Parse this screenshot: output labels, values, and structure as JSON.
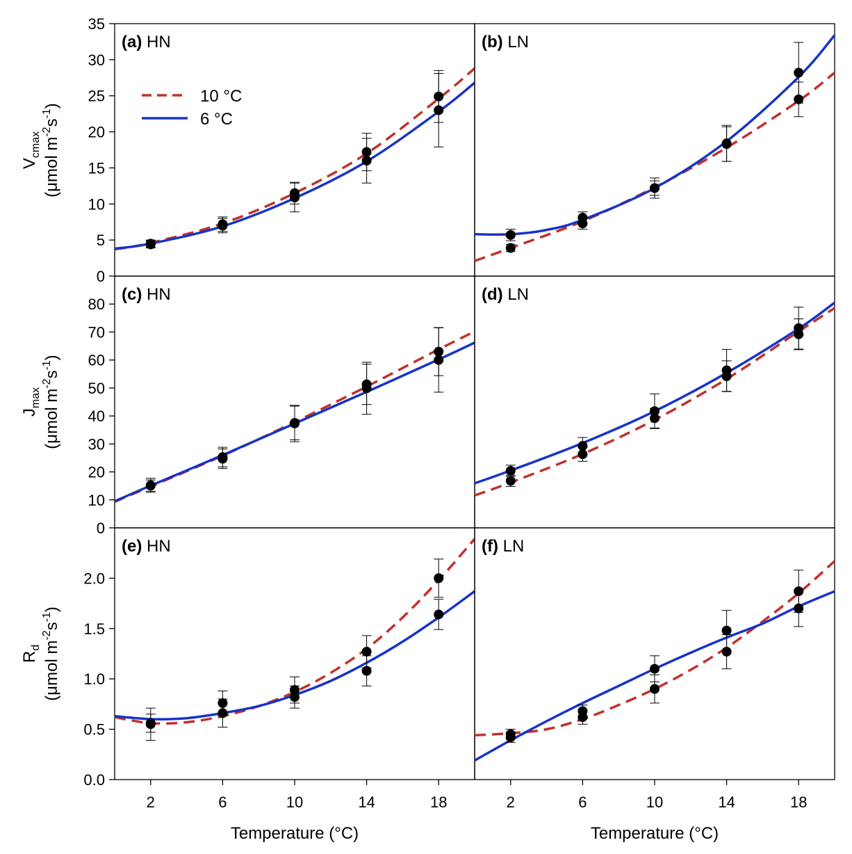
{
  "figure": {
    "xlabel": "Temperature (°C)"
  },
  "legend": [
    {
      "label": "10 °C",
      "color": "#c0312b",
      "dashed": true
    },
    {
      "label": "6 °C",
      "color": "#1733c9",
      "dashed": false
    }
  ],
  "row_labels": [
    {
      "main": "V",
      "sub": "cmax",
      "unit_pre": "(μmol m",
      "sup1": "-2",
      "unit_mid": "s",
      "sup2": "-1",
      "unit_post": ")"
    },
    {
      "main": "J",
      "sub": "max",
      "unit_pre": "(μmol m",
      "sup1": "-2",
      "unit_mid": "s",
      "sup2": "-1",
      "unit_post": ")"
    },
    {
      "main": "R",
      "sub": "d",
      "unit_pre": "(μmol m",
      "sup1": "-2",
      "unit_mid": "s",
      "sup2": "-1",
      "unit_post": ")"
    }
  ],
  "chart_data": [
    {
      "type": "scatter",
      "panel": "a",
      "tag": "(a)",
      "nitrogen": "HN",
      "xlim": [
        0,
        20
      ],
      "ylim": [
        0,
        35
      ],
      "yticks": [
        "0",
        "5",
        "10",
        "15",
        "20",
        "25",
        "30",
        "35"
      ],
      "ytick_values": [
        0,
        5,
        10,
        15,
        20,
        25,
        30,
        35
      ],
      "xticks": [
        2,
        6,
        10,
        14,
        18
      ],
      "series": [
        {
          "name": "10 °C",
          "color": "#c0312b",
          "dashed": true,
          "points": [
            [
              2,
              4.5,
              0.5
            ],
            [
              6,
              7.2,
              1.0
            ],
            [
              10,
              11.5,
              1.5
            ],
            [
              14,
              17.2,
              2.6
            ],
            [
              18,
              24.9,
              3.6
            ]
          ],
          "curve": [
            [
              0,
              3.7
            ],
            [
              2,
              4.6
            ],
            [
              6,
              7.3
            ],
            [
              10,
              11.5
            ],
            [
              14,
              17.0
            ],
            [
              18,
              24.6
            ],
            [
              20,
              28.8
            ]
          ]
        },
        {
          "name": "6 °C",
          "color": "#1733c9",
          "dashed": false,
          "points": [
            [
              2,
              4.4,
              0.5
            ],
            [
              6,
              7.0,
              1.0
            ],
            [
              10,
              10.9,
              2.0
            ],
            [
              14,
              16.0,
              3.1
            ],
            [
              18,
              23.0,
              5.1
            ]
          ],
          "curve": [
            [
              0,
              3.8
            ],
            [
              2,
              4.5
            ],
            [
              6,
              6.9
            ],
            [
              10,
              10.8
            ],
            [
              14,
              15.9
            ],
            [
              18,
              22.8
            ],
            [
              20,
              26.8
            ]
          ]
        }
      ]
    },
    {
      "type": "scatter",
      "panel": "b",
      "tag": "(b)",
      "nitrogen": "LN",
      "xlim": [
        0,
        20
      ],
      "ylim": [
        0,
        35
      ],
      "yticks": [],
      "ytick_values": [
        0,
        5,
        10,
        15,
        20,
        25,
        30,
        35
      ],
      "xticks": [
        2,
        6,
        10,
        14,
        18
      ],
      "series": [
        {
          "name": "10 °C",
          "color": "#c0312b",
          "dashed": true,
          "points": [
            [
              2,
              3.9,
              0.5
            ],
            [
              6,
              7.3,
              0.8
            ],
            [
              10,
              12.2,
              1.4
            ],
            [
              14,
              18.3,
              2.4
            ],
            [
              18,
              24.5,
              2.4
            ]
          ],
          "curve": [
            [
              0,
              2.1
            ],
            [
              2,
              3.9
            ],
            [
              6,
              7.6
            ],
            [
              10,
              12.3
            ],
            [
              14,
              17.8
            ],
            [
              18,
              24.3
            ],
            [
              20,
              28.2
            ]
          ]
        },
        {
          "name": "6 °C",
          "color": "#1733c9",
          "dashed": false,
          "points": [
            [
              2,
              5.7,
              0.8
            ],
            [
              6,
              8.1,
              0.8
            ],
            [
              10,
              12.2,
              1.0
            ],
            [
              14,
              18.4,
              2.5
            ],
            [
              18,
              28.2,
              4.2
            ]
          ],
          "curve": [
            [
              0,
              5.8
            ],
            [
              2,
              5.8
            ],
            [
              4,
              6.4
            ],
            [
              6,
              7.8
            ],
            [
              10,
              12.2
            ],
            [
              14,
              18.7
            ],
            [
              18,
              27.6
            ],
            [
              20,
              33.4
            ]
          ]
        }
      ]
    },
    {
      "type": "scatter",
      "panel": "c",
      "tag": "(c)",
      "nitrogen": "HN",
      "xlim": [
        0,
        20
      ],
      "ylim": [
        0,
        90
      ],
      "yticks": [
        "0",
        "10",
        "20",
        "30",
        "40",
        "50",
        "60",
        "70",
        "80"
      ],
      "ytick_values": [
        0,
        10,
        20,
        30,
        40,
        50,
        60,
        70,
        80
      ],
      "xticks": [
        2,
        6,
        10,
        14,
        18
      ],
      "series": [
        {
          "name": "10 °C",
          "color": "#c0312b",
          "dashed": true,
          "points": [
            [
              2,
              15.2,
              2.5
            ],
            [
              6,
              25.3,
              3.5
            ],
            [
              10,
              37.5,
              6.0
            ],
            [
              14,
              51.3,
              7.2
            ],
            [
              18,
              63.0,
              8.6
            ]
          ],
          "curve": [
            [
              0,
              9.3
            ],
            [
              2,
              14.8
            ],
            [
              6,
              25.8
            ],
            [
              10,
              37.8
            ],
            [
              14,
              50.5
            ],
            [
              18,
              63.8
            ],
            [
              20,
              70.2
            ]
          ]
        },
        {
          "name": "6 °C",
          "color": "#1733c9",
          "dashed": false,
          "points": [
            [
              2,
              15.1,
              2.0
            ],
            [
              6,
              24.7,
              3.5
            ],
            [
              10,
              37.3,
              6.5
            ],
            [
              14,
              49.9,
              9.3
            ],
            [
              18,
              60.0,
              11.5
            ]
          ],
          "curve": [
            [
              0,
              9.5
            ],
            [
              2,
              15.1
            ],
            [
              6,
              26.0
            ],
            [
              10,
              37.3
            ],
            [
              14,
              48.6
            ],
            [
              18,
              60.2
            ],
            [
              20,
              66.2
            ]
          ]
        }
      ]
    },
    {
      "type": "scatter",
      "panel": "d",
      "tag": "(d)",
      "nitrogen": "LN",
      "xlim": [
        0,
        20
      ],
      "ylim": [
        0,
        90
      ],
      "yticks": [],
      "ytick_values": [
        0,
        10,
        20,
        30,
        40,
        50,
        60,
        70,
        80
      ],
      "xticks": [
        2,
        6,
        10,
        14,
        18
      ],
      "series": [
        {
          "name": "10 °C",
          "color": "#c0312b",
          "dashed": true,
          "points": [
            [
              2,
              16.8,
              2.0
            ],
            [
              6,
              26.3,
              2.5
            ],
            [
              10,
              39.2,
              3.5
            ],
            [
              14,
              54.2,
              5.5
            ],
            [
              18,
              69.2,
              5.5
            ]
          ],
          "curve": [
            [
              0,
              11.6
            ],
            [
              2,
              16.2
            ],
            [
              6,
              26.4
            ],
            [
              10,
              38.6
            ],
            [
              14,
              53.2
            ],
            [
              18,
              70.2
            ],
            [
              20,
              78.6
            ]
          ]
        },
        {
          "name": "6 °C",
          "color": "#1733c9",
          "dashed": false,
          "points": [
            [
              2,
              20.4,
              2.0
            ],
            [
              6,
              29.3,
              3.0
            ],
            [
              10,
              41.7,
              6.2
            ],
            [
              14,
              56.3,
              7.5
            ],
            [
              18,
              71.4,
              7.5
            ]
          ],
          "curve": [
            [
              0,
              15.9
            ],
            [
              2,
              20.5
            ],
            [
              6,
              30.3
            ],
            [
              10,
              41.7
            ],
            [
              14,
              55.4
            ],
            [
              18,
              71.2
            ],
            [
              20,
              80.5
            ]
          ]
        }
      ]
    },
    {
      "type": "scatter",
      "panel": "e",
      "tag": "(e)",
      "nitrogen": "HN",
      "xlim": [
        0,
        20
      ],
      "ylim": [
        0,
        2.5
      ],
      "yticks": [
        "0.0",
        "0.5",
        "1.0",
        "1.5",
        "2.0"
      ],
      "ytick_values": [
        0,
        0.5,
        1.0,
        1.5,
        2.0
      ],
      "xticks": [
        2,
        6,
        10,
        14,
        18
      ],
      "series": [
        {
          "name": "10 °C",
          "color": "#c0312b",
          "dashed": true,
          "points": [
            [
              2,
              0.56,
              0.09
            ],
            [
              6,
              0.76,
              0.12
            ],
            [
              10,
              0.89,
              0.13
            ],
            [
              14,
              1.27,
              0.16
            ],
            [
              18,
              2.0,
              0.19
            ]
          ],
          "curve": [
            [
              0,
              0.62
            ],
            [
              2,
              0.56
            ],
            [
              4,
              0.57
            ],
            [
              6,
              0.63
            ],
            [
              8,
              0.73
            ],
            [
              10,
              0.87
            ],
            [
              12,
              1.06
            ],
            [
              14,
              1.3
            ],
            [
              16,
              1.61
            ],
            [
              18,
              1.98
            ],
            [
              20,
              2.39
            ]
          ]
        },
        {
          "name": "6 °C",
          "color": "#1733c9",
          "dashed": false,
          "points": [
            [
              2,
              0.55,
              0.16
            ],
            [
              6,
              0.66,
              0.14
            ],
            [
              10,
              0.82,
              0.11
            ],
            [
              14,
              1.08,
              0.15
            ],
            [
              18,
              1.64,
              0.15
            ]
          ],
          "curve": [
            [
              0,
              0.63
            ],
            [
              2,
              0.6
            ],
            [
              4,
              0.61
            ],
            [
              6,
              0.66
            ],
            [
              8,
              0.73
            ],
            [
              10,
              0.84
            ],
            [
              12,
              0.98
            ],
            [
              14,
              1.16
            ],
            [
              16,
              1.37
            ],
            [
              18,
              1.61
            ],
            [
              20,
              1.87
            ]
          ]
        }
      ]
    },
    {
      "type": "scatter",
      "panel": "f",
      "tag": "(f)",
      "nitrogen": "LN",
      "xlim": [
        0,
        20
      ],
      "ylim": [
        0,
        2.5
      ],
      "yticks": [],
      "ytick_values": [
        0,
        0.5,
        1.0,
        1.5,
        2.0
      ],
      "xticks": [
        2,
        6,
        10,
        14,
        18
      ],
      "series": [
        {
          "name": "10 °C",
          "color": "#c0312b",
          "dashed": true,
          "points": [
            [
              2,
              0.45,
              0.05
            ],
            [
              6,
              0.62,
              0.07
            ],
            [
              10,
              0.9,
              0.14
            ],
            [
              14,
              1.27,
              0.17
            ],
            [
              18,
              1.87,
              0.21
            ]
          ],
          "curve": [
            [
              0,
              0.44
            ],
            [
              2,
              0.46
            ],
            [
              4,
              0.5
            ],
            [
              6,
              0.6
            ],
            [
              8,
              0.74
            ],
            [
              10,
              0.9
            ],
            [
              12,
              1.09
            ],
            [
              14,
              1.31
            ],
            [
              16,
              1.57
            ],
            [
              18,
              1.85
            ],
            [
              20,
              2.17
            ]
          ]
        },
        {
          "name": "6 °C",
          "color": "#1733c9",
          "dashed": false,
          "points": [
            [
              2,
              0.42,
              0.05
            ],
            [
              6,
              0.68,
              0.06
            ],
            [
              10,
              1.1,
              0.13
            ],
            [
              14,
              1.48,
              0.2
            ],
            [
              18,
              1.7,
              0.18
            ]
          ],
          "curve": [
            [
              0,
              0.19
            ],
            [
              2,
              0.39
            ],
            [
              4,
              0.58
            ],
            [
              6,
              0.76
            ],
            [
              8,
              0.93
            ],
            [
              10,
              1.1
            ],
            [
              12,
              1.26
            ],
            [
              14,
              1.41
            ],
            [
              16,
              1.55
            ],
            [
              18,
              1.72
            ],
            [
              20,
              1.87
            ]
          ]
        }
      ]
    }
  ]
}
